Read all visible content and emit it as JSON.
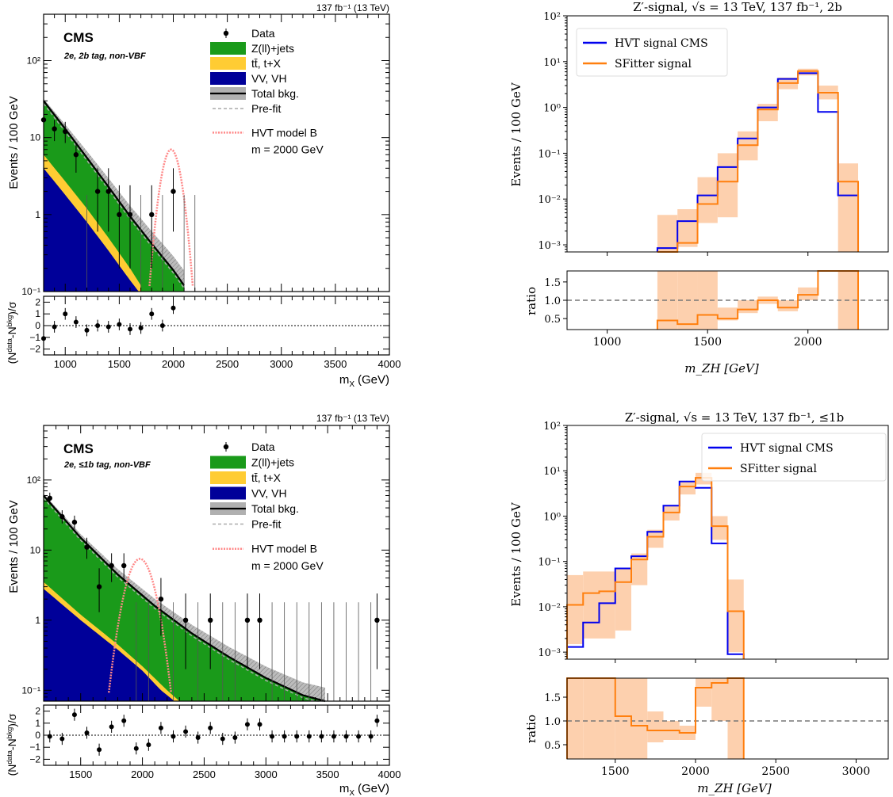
{
  "chart_data": [
    {
      "type": "histogram",
      "panel": "top-left",
      "lumi_label": "137 fb⁻¹ (13 TeV)",
      "experiment": "CMS",
      "category": "2e, 2b tag, non-VBF",
      "ylabel": "Events / 100 GeV",
      "xlabel": "m",
      "xlabel_sub": "X",
      "xlabel_unit": "(GeV)",
      "ratio_ylabel": "(N",
      "xlim": [
        800,
        4000
      ],
      "ylim": [
        0.1,
        400
      ],
      "yscale": "log",
      "ratio_ylim": [
        -2.5,
        2.5
      ],
      "xticks": [
        1000,
        1500,
        2000,
        2500,
        3000,
        3500,
        4000
      ],
      "yticks": [
        {
          "v": 0.1,
          "t": "10⁻¹"
        },
        {
          "v": 1,
          "t": "1"
        },
        {
          "v": 10,
          "t": "10"
        },
        {
          "v": 100,
          "t": "10²"
        }
      ],
      "ratio_yticks": [
        {
          "v": -2,
          "t": "−2"
        },
        {
          "v": -1,
          "t": "−1"
        },
        {
          "v": 0,
          "t": "0"
        },
        {
          "v": 1,
          "t": "1"
        },
        {
          "v": 2,
          "t": "2"
        }
      ],
      "legend": [
        "Data",
        "Z(ll)+jets",
        "tt̄, t+X",
        "VV, VH",
        "Total bkg.",
        "Pre-fit",
        "HVT model B",
        "m = 2000 GeV"
      ],
      "colors": {
        "zjets": "#1a9a1a",
        "ttbar": "#ffcc33",
        "vv": "#000099",
        "signal": "#ff8888",
        "unc": "#b0b0b0"
      },
      "bkg": {
        "total": [
          [
            800,
            30
          ],
          [
            1000,
            13
          ],
          [
            1200,
            5.5
          ],
          [
            1400,
            2.3
          ],
          [
            1600,
            0.95
          ],
          [
            1800,
            0.42
          ],
          [
            2000,
            0.19
          ],
          [
            2100,
            0.12
          ]
        ],
        "ttvv": [
          [
            800,
            6
          ],
          [
            1000,
            2.7
          ],
          [
            1200,
            1.2
          ],
          [
            1400,
            0.5
          ],
          [
            1600,
            0.2
          ],
          [
            1700,
            0.12
          ]
        ],
        "vv": [
          [
            800,
            4
          ],
          [
            1000,
            1.8
          ],
          [
            1200,
            0.8
          ],
          [
            1400,
            0.34
          ],
          [
            1600,
            0.14
          ],
          [
            1680,
            0.1
          ]
        ]
      },
      "data_points": [
        {
          "x": 800,
          "y": 17,
          "lo": 12,
          "hi": 22
        },
        {
          "x": 900,
          "y": 13,
          "lo": 9,
          "hi": 17
        },
        {
          "x": 1000,
          "y": 12,
          "lo": 8.5,
          "hi": 16
        },
        {
          "x": 1100,
          "y": 6,
          "lo": 3.5,
          "hi": 8.5
        },
        {
          "x": 1300,
          "y": 2,
          "lo": 0.6,
          "hi": 4
        },
        {
          "x": 1400,
          "y": 2,
          "lo": 0.6,
          "hi": 4
        },
        {
          "x": 1500,
          "y": 1,
          "lo": 0.2,
          "hi": 2.4
        },
        {
          "x": 1600,
          "y": 1,
          "lo": 0.2,
          "hi": 2.4
        },
        {
          "x": 1800,
          "y": 1,
          "lo": 0.2,
          "hi": 2.4
        },
        {
          "x": 2000,
          "y": 2,
          "lo": 0.6,
          "hi": 4
        }
      ],
      "empty_bins_x": [
        1200,
        1700,
        1900,
        2100,
        2200
      ],
      "signal_peak": {
        "center": 1980,
        "peak": 7,
        "sigma": 70
      },
      "pulls": [
        [
          800,
          -1.1
        ],
        [
          900,
          -0.1
        ],
        [
          1000,
          1.0
        ],
        [
          1100,
          0.3
        ],
        [
          1200,
          -0.4
        ],
        [
          1300,
          0.0
        ],
        [
          1400,
          -0.1
        ],
        [
          1500,
          0.1
        ],
        [
          1600,
          -0.3
        ],
        [
          1700,
          -0.2
        ],
        [
          1800,
          1.0
        ],
        [
          1900,
          0.0
        ],
        [
          2000,
          1.5
        ]
      ]
    },
    {
      "type": "histogram",
      "panel": "top-right",
      "title": "Z′-signal, √s = 13 TeV, 137 fb⁻¹, 2b",
      "ylabel": "Events / 100 GeV",
      "xlabel": "m_ZH [GeV]",
      "ratio_ylabel": "ratio",
      "xlim": [
        800,
        2400
      ],
      "ylim": [
        0.0007,
        100
      ],
      "yscale": "log",
      "ratio_ylim": [
        0.2,
        1.8
      ],
      "xticks": [
        1000,
        1500,
        2000
      ],
      "yticks": [
        {
          "v": 0.001,
          "t": "10⁻³"
        },
        {
          "v": 0.01,
          "t": "10⁻²"
        },
        {
          "v": 0.1,
          "t": "10⁻¹"
        },
        {
          "v": 1,
          "t": "10⁰"
        },
        {
          "v": 10,
          "t": "10¹"
        },
        {
          "v": 100,
          "t": "10²"
        }
      ],
      "ratio_yticks": [
        0.5,
        1.0,
        1.5
      ],
      "legend_placement": "top-left",
      "series": [
        {
          "name": "HVT signal CMS",
          "color": "#0000ee",
          "edges": [
            1250,
            1350,
            1450,
            1550,
            1650,
            1750,
            1850,
            1950,
            2050,
            2150,
            2250
          ],
          "values": [
            0.00085,
            0.0033,
            0.012,
            0.05,
            0.21,
            1.0,
            4.2,
            5.6,
            0.8,
            0.012
          ]
        },
        {
          "name": "SFitter signal",
          "color": "#ff7f0e",
          "edges": [
            1250,
            1350,
            1450,
            1550,
            1650,
            1750,
            1850,
            1950,
            2050,
            2150,
            2250
          ],
          "values": [
            0.0004,
            0.0011,
            0.0078,
            0.024,
            0.15,
            0.9,
            3.4,
            6.2,
            2.1,
            0.024
          ]
        }
      ],
      "band": [
        [
          0.0004,
          0.0045
        ],
        [
          0.0009,
          0.006
        ],
        [
          0.003,
          0.03
        ],
        [
          0.004,
          0.1
        ],
        [
          0.07,
          0.3
        ],
        [
          0.5,
          1.2
        ],
        [
          2.5,
          4.5
        ],
        [
          5,
          7
        ],
        [
          1.5,
          3
        ],
        [
          0.0006,
          0.06
        ]
      ],
      "ratio": {
        "edges": [
          1250,
          1350,
          1450,
          1550,
          1650,
          1750,
          1850,
          1950,
          2050,
          2150,
          2250
        ],
        "values": [
          0.45,
          0.35,
          0.6,
          0.5,
          0.75,
          1.0,
          0.8,
          1.15,
          2.5,
          2.0
        ],
        "band": [
          [
            0.2,
            1.8
          ],
          [
            0.2,
            1.8
          ],
          [
            0.2,
            1.8
          ],
          [
            0.45,
            0.8
          ],
          [
            0.65,
            1.0
          ],
          [
            0.9,
            1.1
          ],
          [
            0.7,
            1.0
          ],
          [
            1.0,
            1.35
          ],
          [
            2,
            2
          ],
          [
            0.2,
            1.8
          ]
        ]
      }
    },
    {
      "type": "histogram",
      "panel": "bottom-left",
      "lumi_label": "137 fb⁻¹ (13 TeV)",
      "experiment": "CMS",
      "category": "2e, ≤1b tag, non-VBF",
      "ylabel": "Events / 100 GeV",
      "xlabel": "m",
      "xlabel_sub": "X",
      "xlabel_unit": "(GeV)",
      "ratio_ylabel": "(N",
      "xlim": [
        1200,
        4000
      ],
      "ylim": [
        0.07,
        600
      ],
      "yscale": "log",
      "ratio_ylim": [
        -2.5,
        2.5
      ],
      "xticks": [
        1500,
        2000,
        2500,
        3000,
        3500,
        4000
      ],
      "yticks": [
        {
          "v": 0.1,
          "t": "10⁻¹"
        },
        {
          "v": 1,
          "t": "1"
        },
        {
          "v": 10,
          "t": "10"
        },
        {
          "v": 100,
          "t": "10²"
        }
      ],
      "ratio_yticks": [
        {
          "v": -2,
          "t": "−2"
        },
        {
          "v": -1,
          "t": "−1"
        },
        {
          "v": 0,
          "t": "0"
        },
        {
          "v": 1,
          "t": "1"
        },
        {
          "v": 2,
          "t": "2"
        }
      ],
      "legend": [
        "Data",
        "Z(ll)+jets",
        "tt̄, t+X",
        "VV, VH",
        "Total bkg.",
        "Pre-fit",
        "HVT model B",
        "m = 2000 GeV"
      ],
      "colors": {
        "zjets": "#1a9a1a",
        "ttbar": "#ffcc33",
        "vv": "#000099",
        "signal": "#ff8888",
        "unc": "#b0b0b0"
      },
      "bkg": {
        "total": [
          [
            1200,
            60
          ],
          [
            1500,
            15
          ],
          [
            1800,
            4.5
          ],
          [
            2100,
            1.6
          ],
          [
            2400,
            0.65
          ],
          [
            2700,
            0.3
          ],
          [
            3000,
            0.15
          ],
          [
            3300,
            0.085
          ],
          [
            3480,
            0.07
          ]
        ],
        "ttvv": [
          [
            1200,
            3.5
          ],
          [
            1500,
            1.2
          ],
          [
            1800,
            0.45
          ],
          [
            2000,
            0.22
          ],
          [
            2200,
            0.1
          ],
          [
            2300,
            0.07
          ]
        ],
        "vv": [
          [
            1200,
            2.8
          ],
          [
            1500,
            1.0
          ],
          [
            1800,
            0.38
          ],
          [
            2000,
            0.19
          ],
          [
            2150,
            0.1
          ],
          [
            2260,
            0.07
          ]
        ]
      },
      "data_points": [
        {
          "x": 1250,
          "y": 55,
          "lo": 45,
          "hi": 66
        },
        {
          "x": 1350,
          "y": 30,
          "lo": 24,
          "hi": 37
        },
        {
          "x": 1450,
          "y": 25,
          "lo": 20,
          "hi": 31
        },
        {
          "x": 1550,
          "y": 11,
          "lo": 7.5,
          "hi": 15
        },
        {
          "x": 1650,
          "y": 3,
          "lo": 1.3,
          "hi": 5.5
        },
        {
          "x": 1750,
          "y": 6,
          "lo": 3.5,
          "hi": 9
        },
        {
          "x": 1850,
          "y": 6,
          "lo": 3.5,
          "hi": 9
        },
        {
          "x": 2150,
          "y": 2,
          "lo": 0.6,
          "hi": 4
        },
        {
          "x": 2350,
          "y": 1,
          "lo": 0.2,
          "hi": 2.4
        },
        {
          "x": 2550,
          "y": 1,
          "lo": 0.2,
          "hi": 2.4
        },
        {
          "x": 2850,
          "y": 1,
          "lo": 0.2,
          "hi": 2.4
        },
        {
          "x": 2950,
          "y": 1,
          "lo": 0.2,
          "hi": 2.4
        },
        {
          "x": 3900,
          "y": 1,
          "lo": 0.2,
          "hi": 2.4
        }
      ],
      "empty_bins_x": [
        1950,
        2050,
        2250,
        2450,
        2650,
        2750,
        3050,
        3150,
        3250,
        3350,
        3450,
        3550,
        3650,
        3750,
        3850
      ],
      "signal_peak": {
        "center": 1980,
        "peak": 7.5,
        "sigma": 85
      },
      "pulls": [
        [
          1250,
          -0.1
        ],
        [
          1350,
          -0.3
        ],
        [
          1450,
          1.7
        ],
        [
          1550,
          0.2
        ],
        [
          1650,
          -1.2
        ],
        [
          1750,
          0.7
        ],
        [
          1850,
          1.2
        ],
        [
          1950,
          -1.1
        ],
        [
          2050,
          -0.8
        ],
        [
          2150,
          0.6
        ],
        [
          2250,
          -0.1
        ],
        [
          2350,
          0.3
        ],
        [
          2450,
          -0.2
        ],
        [
          2550,
          0.6
        ],
        [
          2650,
          -0.3
        ],
        [
          2750,
          -0.2
        ],
        [
          2850,
          0.9
        ],
        [
          2950,
          0.9
        ],
        [
          3050,
          -0.1
        ],
        [
          3150,
          -0.1
        ],
        [
          3250,
          -0.1
        ],
        [
          3350,
          -0.1
        ],
        [
          3450,
          -0.1
        ],
        [
          3550,
          -0.1
        ],
        [
          3650,
          -0.1
        ],
        [
          3750,
          -0.1
        ],
        [
          3850,
          -0.1
        ],
        [
          3900,
          1.2
        ]
      ]
    },
    {
      "type": "histogram",
      "panel": "bottom-right",
      "title": "Z′-signal, √s = 13 TeV, 137 fb⁻¹, ≤1b",
      "ylabel": "Events / 100 GeV",
      "xlabel": "m_ZH [GeV]",
      "ratio_ylabel": "ratio",
      "xlim": [
        1200,
        3200
      ],
      "ylim": [
        0.0007,
        100
      ],
      "yscale": "log",
      "ratio_ylim": [
        0.2,
        1.9
      ],
      "xticks": [
        1500,
        2000,
        2500,
        3000
      ],
      "yticks": [
        {
          "v": 0.001,
          "t": "10⁻³"
        },
        {
          "v": 0.01,
          "t": "10⁻²"
        },
        {
          "v": 0.1,
          "t": "10⁻¹"
        },
        {
          "v": 1,
          "t": "10⁰"
        },
        {
          "v": 10,
          "t": "10¹"
        },
        {
          "v": 100,
          "t": "10²"
        }
      ],
      "ratio_yticks": [
        0.5,
        1.0,
        1.5
      ],
      "legend_placement": "top-right",
      "series": [
        {
          "name": "HVT signal CMS",
          "color": "#0000ee",
          "edges": [
            1200,
            1300,
            1400,
            1500,
            1600,
            1700,
            1800,
            1900,
            2000,
            2100,
            2200,
            2300
          ],
          "values": [
            0.0013,
            0.0045,
            0.012,
            0.07,
            0.13,
            0.45,
            1.7,
            5.8,
            4.2,
            0.25,
            0.0009
          ]
        },
        {
          "name": "SFitter signal",
          "color": "#ff7f0e",
          "edges": [
            1200,
            1300,
            1400,
            1500,
            1600,
            1700,
            1800,
            1900,
            2000,
            2100,
            2200,
            2300
          ],
          "values": [
            0.011,
            0.02,
            0.022,
            0.035,
            0.11,
            0.35,
            1.2,
            4.5,
            7,
            0.6,
            0.008
          ]
        }
      ],
      "band": [
        [
          0.0015,
          0.05
        ],
        [
          0.002,
          0.06
        ],
        [
          0.002,
          0.06
        ],
        [
          0.003,
          0.07
        ],
        [
          0.03,
          0.15
        ],
        [
          0.2,
          0.5
        ],
        [
          0.8,
          1.7
        ],
        [
          3,
          6
        ],
        [
          5,
          9
        ],
        [
          0.3,
          1
        ],
        [
          0.001,
          0.04
        ]
      ],
      "ratio": {
        "edges": [
          1200,
          1300,
          1400,
          1500,
          1600,
          1700,
          1800,
          1900,
          2000,
          2100,
          2200,
          2300
        ],
        "values": [
          2.5,
          2.5,
          2.5,
          1.1,
          0.9,
          0.8,
          0.8,
          0.75,
          1.7,
          1.8,
          2.5
        ],
        "band": [
          [
            0.2,
            1.9
          ],
          [
            0.2,
            1.9
          ],
          [
            0.2,
            1.9
          ],
          [
            0.2,
            1.9
          ],
          [
            0.2,
            1.9
          ],
          [
            0.55,
            1.2
          ],
          [
            0.6,
            1.0
          ],
          [
            0.6,
            0.9
          ],
          [
            1.3,
            1.9
          ],
          [
            1.0,
            1.9
          ],
          [
            0.2,
            1.9
          ]
        ]
      }
    }
  ]
}
